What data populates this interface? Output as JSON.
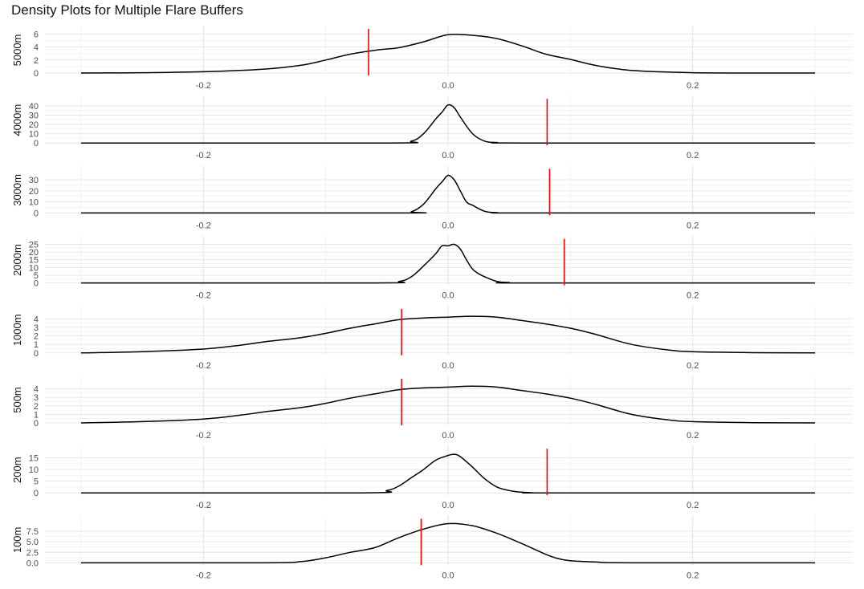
{
  "chart_data": {
    "type": "area",
    "title": "Density Plots for Multiple Flare Buffers",
    "x_tick_labels": [
      "-0.2",
      "0.0",
      "0.2"
    ],
    "x_ticks": [
      -0.2,
      0.0,
      0.2
    ],
    "xlim": [
      -0.3,
      0.3
    ],
    "grid": true,
    "line_color": "#000000",
    "marker_color": "#ff0000",
    "panels": [
      {
        "label": "5000m",
        "ylim": [
          0,
          6.3
        ],
        "y_ticks": [
          0,
          2,
          4,
          6
        ],
        "y_tick_labels": [
          "0",
          "2",
          "4",
          "6"
        ],
        "marker_x": -0.065,
        "x": [
          -0.3,
          -0.25,
          -0.2,
          -0.15,
          -0.12,
          -0.1,
          -0.08,
          -0.06,
          -0.05,
          -0.04,
          -0.02,
          0.0,
          0.02,
          0.04,
          0.06,
          0.08,
          0.1,
          0.12,
          0.15,
          0.2,
          0.25,
          0.3
        ],
        "y": [
          0,
          0.05,
          0.2,
          0.6,
          1.2,
          2.0,
          2.9,
          3.5,
          3.7,
          3.9,
          4.8,
          5.9,
          5.8,
          5.3,
          4.2,
          2.9,
          2.1,
          1.2,
          0.4,
          0.05,
          0,
          0
        ]
      },
      {
        "label": "4000m",
        "ylim": [
          0,
          44
        ],
        "y_ticks": [
          0,
          10,
          20,
          30,
          40
        ],
        "y_tick_labels": [
          "0",
          "10",
          "20",
          "30",
          "40"
        ],
        "marker_x": 0.081,
        "x": [
          -0.3,
          -0.05,
          -0.03,
          -0.02,
          -0.01,
          -0.005,
          0.0,
          0.005,
          0.01,
          0.02,
          0.03,
          0.04,
          0.06,
          0.3
        ],
        "y": [
          0,
          0,
          2,
          10,
          26,
          33,
          41,
          38,
          28,
          10,
          2,
          0.5,
          0,
          0
        ]
      },
      {
        "label": "3000m",
        "ylim": [
          0,
          37
        ],
        "y_ticks": [
          0,
          10,
          20,
          30
        ],
        "y_tick_labels": [
          "0",
          "10",
          "20",
          "30"
        ],
        "marker_x": 0.083,
        "x": [
          -0.3,
          -0.04,
          -0.03,
          -0.02,
          -0.01,
          -0.005,
          0.0,
          0.005,
          0.01,
          0.015,
          0.02,
          0.03,
          0.04,
          0.06,
          0.3
        ],
        "y": [
          0,
          0,
          1,
          8,
          22,
          28,
          34,
          30,
          20,
          10,
          7,
          1.5,
          0.3,
          0,
          0
        ]
      },
      {
        "label": "2000m",
        "ylim": [
          0,
          26.5
        ],
        "y_ticks": [
          0,
          5,
          10,
          15,
          20,
          25
        ],
        "y_tick_labels": [
          "0",
          "5",
          "10",
          "15",
          "20",
          "25"
        ],
        "marker_x": 0.095,
        "x": [
          -0.3,
          -0.06,
          -0.04,
          -0.03,
          -0.02,
          -0.01,
          -0.005,
          0.0,
          0.005,
          0.01,
          0.015,
          0.02,
          0.025,
          0.03,
          0.04,
          0.05,
          0.06,
          0.3
        ],
        "y": [
          0,
          0,
          1,
          4,
          11,
          19,
          24,
          24,
          25,
          22,
          15,
          9,
          6,
          4,
          1,
          0.3,
          0,
          0
        ]
      },
      {
        "label": "1000m",
        "ylim": [
          0,
          4.8
        ],
        "y_ticks": [
          0,
          1,
          2,
          3,
          4
        ],
        "y_tick_labels": [
          "0",
          "1",
          "2",
          "3",
          "4"
        ],
        "marker_x": -0.038,
        "x": [
          -0.3,
          -0.25,
          -0.2,
          -0.17,
          -0.15,
          -0.12,
          -0.1,
          -0.08,
          -0.06,
          -0.04,
          -0.02,
          0.0,
          0.02,
          0.04,
          0.06,
          0.08,
          0.1,
          0.12,
          0.15,
          0.18,
          0.2,
          0.25,
          0.3
        ],
        "y": [
          0,
          0.15,
          0.45,
          0.9,
          1.3,
          1.8,
          2.3,
          2.9,
          3.4,
          3.9,
          4.1,
          4.2,
          4.3,
          4.2,
          3.8,
          3.4,
          2.9,
          2.2,
          1.0,
          0.35,
          0.15,
          0.03,
          0
        ]
      },
      {
        "label": "500m",
        "ylim": [
          0,
          4.8
        ],
        "y_ticks": [
          0,
          1,
          2,
          3,
          4
        ],
        "y_tick_labels": [
          "0",
          "1",
          "2",
          "3",
          "4"
        ],
        "marker_x": -0.038,
        "x": [
          -0.3,
          -0.25,
          -0.2,
          -0.17,
          -0.15,
          -0.12,
          -0.1,
          -0.08,
          -0.06,
          -0.04,
          -0.02,
          0.0,
          0.02,
          0.04,
          0.06,
          0.08,
          0.1,
          0.12,
          0.15,
          0.18,
          0.2,
          0.25,
          0.3
        ],
        "y": [
          0,
          0.15,
          0.45,
          0.9,
          1.3,
          1.8,
          2.3,
          2.9,
          3.4,
          3.9,
          4.1,
          4.2,
          4.3,
          4.2,
          3.8,
          3.4,
          2.9,
          2.2,
          1.0,
          0.35,
          0.15,
          0.03,
          0
        ]
      },
      {
        "label": "200m",
        "ylim": [
          0,
          17.5
        ],
        "y_ticks": [
          0,
          5,
          10,
          15
        ],
        "y_tick_labels": [
          "0",
          "5",
          "10",
          "15"
        ],
        "marker_x": 0.081,
        "x": [
          -0.3,
          -0.07,
          -0.05,
          -0.04,
          -0.03,
          -0.02,
          -0.01,
          0.0,
          0.005,
          0.01,
          0.02,
          0.03,
          0.04,
          0.05,
          0.06,
          0.07,
          0.08,
          0.3
        ],
        "y": [
          0,
          0,
          1,
          3,
          6.5,
          10,
          14,
          16,
          16.5,
          15.5,
          11,
          6,
          2.5,
          1,
          0.3,
          0.05,
          0,
          0
        ]
      },
      {
        "label": "100m",
        "ylim": [
          0,
          9.7
        ],
        "y_ticks": [
          0,
          2.5,
          5,
          7.5
        ],
        "y_tick_labels": [
          "0.0",
          "2.5",
          "5.0",
          "7.5"
        ],
        "marker_x": -0.022,
        "x": [
          -0.3,
          -0.15,
          -0.12,
          -0.1,
          -0.08,
          -0.06,
          -0.04,
          -0.02,
          0.0,
          0.02,
          0.04,
          0.06,
          0.08,
          0.09,
          0.1,
          0.12,
          0.15,
          0.3
        ],
        "y": [
          0,
          0,
          0.3,
          1.2,
          2.5,
          3.6,
          6.0,
          8.0,
          9.3,
          8.8,
          7.0,
          4.6,
          2.0,
          1.0,
          0.5,
          0.2,
          0,
          0
        ]
      }
    ]
  }
}
